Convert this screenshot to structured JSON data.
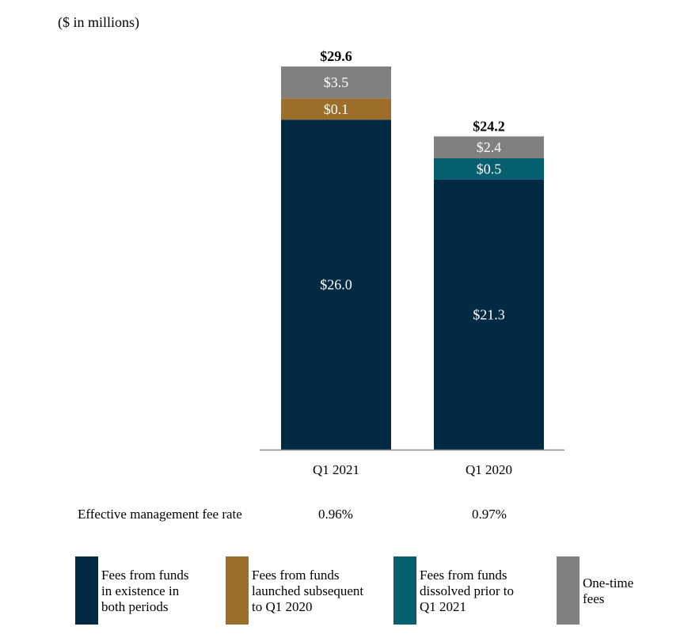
{
  "chart_data": {
    "type": "bar",
    "stacked": true,
    "unit_note": "($ in millions)",
    "categories": [
      "Q1 2021",
      "Q1 2020"
    ],
    "totals": [
      "$29.6",
      "$24.2"
    ],
    "total_values": [
      29.6,
      24.2
    ],
    "series": [
      {
        "name": "Fees from funds in existence in both periods",
        "color": "#022a42",
        "values": [
          26.0,
          21.3
        ],
        "labels": [
          "$26.0",
          "$21.3"
        ]
      },
      {
        "name": "Fees from funds launched subsequent to Q1 2020",
        "color": "#9b6f2a",
        "values": [
          0.1,
          null
        ],
        "labels": [
          "$0.1",
          null
        ]
      },
      {
        "name": "Fees from funds dissolved prior to Q1 2021",
        "color": "#065f6f",
        "values": [
          null,
          0.5
        ],
        "labels": [
          null,
          "$0.5"
        ]
      },
      {
        "name": "One-time fees",
        "color": "#808080",
        "values": [
          3.5,
          2.4
        ],
        "labels": [
          "$3.5",
          "$2.4"
        ]
      }
    ],
    "legend_position": "bottom",
    "grid": false
  },
  "fee_rate": {
    "label": "Effective management fee rate",
    "values": [
      "0.96%",
      "0.97%"
    ]
  },
  "legend": [
    "Fees from funds\nin existence in\nboth periods",
    "Fees from funds\nlaunched subsequent\nto Q1 2020",
    "Fees from funds\ndissolved prior to\nQ1 2021",
    "One-time\nfees"
  ]
}
